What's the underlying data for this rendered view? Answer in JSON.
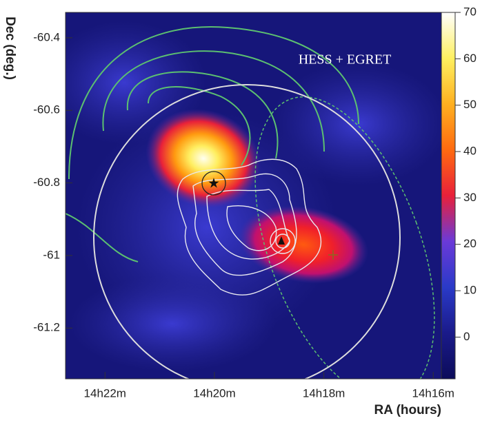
{
  "chart_data": {
    "type": "heatmap",
    "title": "HESS + EGRET",
    "x_label": "RA (hours)",
    "y_label": "Dec (deg.)",
    "xlim": [
      14.3787,
      14.2642
    ],
    "xticks": [
      {
        "value": 14.36667,
        "label": "14h22m"
      },
      {
        "value": 14.33333,
        "label": "14h20m"
      },
      {
        "value": 14.3,
        "label": "14h18m"
      },
      {
        "value": 14.26667,
        "label": "14h16m"
      }
    ],
    "ylim": [
      -61.34,
      -60.33
    ],
    "yticks": [
      -60.4,
      -60.6,
      -60.8,
      -61,
      -61.2
    ],
    "colorbar": {
      "lim": [
        -9,
        70
      ],
      "ticks": [
        0,
        10,
        20,
        30,
        40,
        50,
        60,
        70
      ],
      "colors": [
        "#0c0c5a",
        "#1a1a8a",
        "#2a3ac8",
        "#6a3ad8",
        "#e8203a",
        "#ff6a10",
        "#ffb020",
        "#fff060",
        "#ffffff"
      ]
    }
  }
}
